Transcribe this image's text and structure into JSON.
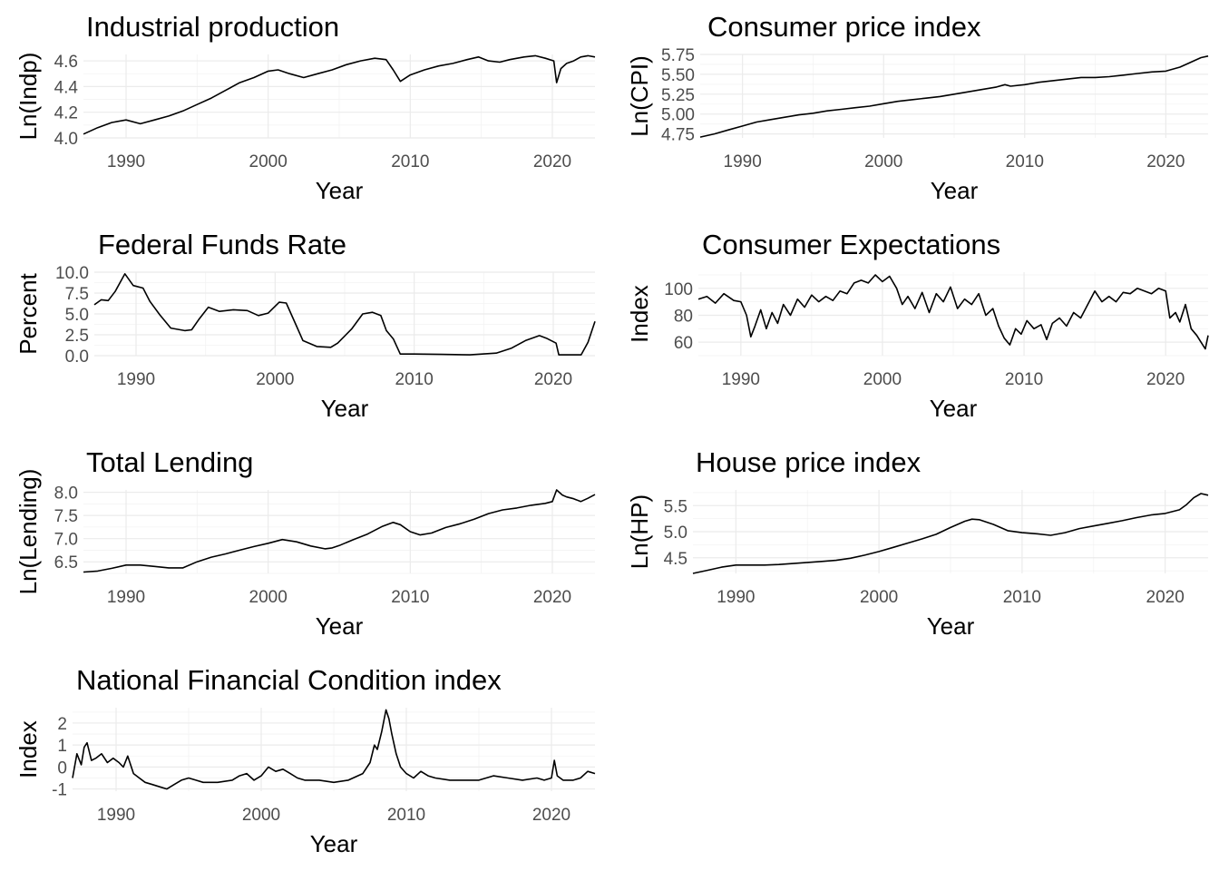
{
  "chart_data": [
    {
      "type": "line",
      "title": "Industrial production",
      "xlabel": "Year",
      "ylabel": "Ln(Indp)",
      "xlim": [
        1987,
        2023
      ],
      "ylim": [
        4.0,
        4.65
      ],
      "xticks": [
        1990,
        2000,
        2010,
        2020
      ],
      "xtick_labels": [
        "1990",
        "2000",
        "2010",
        "2020"
      ],
      "yticks": [
        4.0,
        4.2,
        4.4,
        4.6
      ],
      "ytick_labels": [
        "4.0",
        "4.2",
        "4.4",
        "4.6"
      ],
      "grid": true,
      "x": [
        1987.0,
        1988.0,
        1989.0,
        1990.0,
        1991.0,
        1992.0,
        1993.0,
        1994.0,
        1995.0,
        1996.0,
        1997.0,
        1998.0,
        1999.0,
        2000.0,
        2000.7,
        2001.5,
        2002.5,
        2003.5,
        2004.5,
        2005.5,
        2006.5,
        2007.5,
        2008.3,
        2008.8,
        2009.3,
        2010.0,
        2011.0,
        2012.0,
        2013.0,
        2014.0,
        2014.8,
        2015.5,
        2016.3,
        2017.0,
        2018.0,
        2018.8,
        2019.5,
        2020.1,
        2020.3,
        2020.6,
        2021.0,
        2021.5,
        2022.0,
        2022.5,
        2023.0
      ],
      "y": [
        4.03,
        4.08,
        4.12,
        4.14,
        4.11,
        4.14,
        4.17,
        4.21,
        4.26,
        4.31,
        4.37,
        4.43,
        4.47,
        4.52,
        4.53,
        4.5,
        4.47,
        4.5,
        4.53,
        4.57,
        4.6,
        4.62,
        4.61,
        4.53,
        4.44,
        4.49,
        4.53,
        4.56,
        4.58,
        4.61,
        4.63,
        4.6,
        4.59,
        4.61,
        4.63,
        4.64,
        4.62,
        4.6,
        4.43,
        4.54,
        4.58,
        4.6,
        4.63,
        4.64,
        4.63
      ]
    },
    {
      "type": "line",
      "title": "Consumer price index",
      "xlabel": "Year",
      "ylabel": "Ln(CPI)",
      "xlim": [
        1987,
        2023
      ],
      "ylim": [
        4.7,
        5.75
      ],
      "xticks": [
        1990,
        2000,
        2010,
        2020
      ],
      "xtick_labels": [
        "1990",
        "2000",
        "2010",
        "2020"
      ],
      "yticks": [
        4.75,
        5.0,
        5.25,
        5.5,
        5.75
      ],
      "ytick_labels": [
        "4.75",
        "5.00",
        "5.25",
        "5.50",
        "5.75"
      ],
      "grid": true,
      "x": [
        1987.0,
        1988.0,
        1989.0,
        1990.0,
        1991.0,
        1992.0,
        1993.0,
        1994.0,
        1995.0,
        1996.0,
        1997.0,
        1998.0,
        1999.0,
        2000.0,
        2001.0,
        2002.0,
        2003.0,
        2004.0,
        2005.0,
        2006.0,
        2007.0,
        2008.0,
        2008.6,
        2009.0,
        2010.0,
        2011.0,
        2012.0,
        2013.0,
        2014.0,
        2015.0,
        2016.0,
        2017.0,
        2018.0,
        2019.0,
        2020.0,
        2021.0,
        2021.5,
        2022.0,
        2022.5,
        2023.0
      ],
      "y": [
        4.71,
        4.75,
        4.8,
        4.85,
        4.9,
        4.93,
        4.96,
        4.99,
        5.01,
        5.04,
        5.06,
        5.08,
        5.1,
        5.13,
        5.16,
        5.18,
        5.2,
        5.22,
        5.25,
        5.28,
        5.31,
        5.34,
        5.37,
        5.35,
        5.37,
        5.4,
        5.42,
        5.44,
        5.46,
        5.46,
        5.47,
        5.49,
        5.51,
        5.53,
        5.54,
        5.59,
        5.63,
        5.67,
        5.71,
        5.73
      ]
    },
    {
      "type": "line",
      "title": "Federal Funds Rate",
      "xlabel": "Year",
      "ylabel": "Percent",
      "xlim": [
        1987,
        2023
      ],
      "ylim": [
        0,
        10
      ],
      "xticks": [
        1990,
        2000,
        2010,
        2020
      ],
      "xtick_labels": [
        "1990",
        "2000",
        "2010",
        "2020"
      ],
      "yticks": [
        0,
        2.5,
        5,
        7.5,
        10
      ],
      "ytick_labels": [
        "0.0",
        "2.5",
        "5.0",
        "7.5",
        "10.0"
      ],
      "grid": true,
      "x": [
        1987.0,
        1987.5,
        1988.0,
        1988.5,
        1989.2,
        1989.8,
        1990.5,
        1991.0,
        1991.7,
        1992.5,
        1993.5,
        1994.0,
        1994.5,
        1995.2,
        1996.0,
        1997.0,
        1998.0,
        1998.8,
        1999.5,
        2000.3,
        2000.8,
        2001.5,
        2002.0,
        2003.0,
        2004.0,
        2004.5,
        2005.5,
        2006.3,
        2007.0,
        2007.6,
        2008.0,
        2008.5,
        2009.0,
        2010.0,
        2012.0,
        2014.0,
        2015.9,
        2017.0,
        2018.0,
        2019.0,
        2019.5,
        2020.2,
        2020.4,
        2022.0,
        2022.5,
        2023.0
      ],
      "y": [
        6.1,
        6.7,
        6.6,
        7.7,
        9.8,
        8.4,
        8.1,
        6.5,
        4.9,
        3.3,
        3.0,
        3.1,
        4.3,
        5.8,
        5.3,
        5.5,
        5.4,
        4.8,
        5.1,
        6.4,
        6.3,
        3.7,
        1.8,
        1.1,
        1.0,
        1.5,
        3.2,
        5.0,
        5.2,
        4.8,
        3.0,
        2.0,
        0.2,
        0.2,
        0.15,
        0.1,
        0.3,
        0.9,
        1.8,
        2.4,
        2.1,
        1.5,
        0.1,
        0.1,
        1.6,
        4.1
      ]
    },
    {
      "type": "line",
      "title": "Consumer Expectations",
      "xlabel": "Year",
      "ylabel": "Index",
      "xlim": [
        1987,
        2023
      ],
      "ylim": [
        50,
        112
      ],
      "xticks": [
        1990,
        2000,
        2010,
        2020
      ],
      "xtick_labels": [
        "1990",
        "2000",
        "2010",
        "2020"
      ],
      "yticks": [
        60,
        80,
        100
      ],
      "ytick_labels": [
        "60",
        "80",
        "100"
      ],
      "grid": true,
      "x": [
        1987.0,
        1987.6,
        1988.2,
        1988.8,
        1989.5,
        1990.0,
        1990.4,
        1990.7,
        1991.0,
        1991.4,
        1991.8,
        1992.2,
        1992.6,
        1993.0,
        1993.5,
        1994.0,
        1994.5,
        1995.0,
        1995.5,
        1996.0,
        1996.5,
        1997.0,
        1997.5,
        1998.0,
        1998.5,
        1999.0,
        1999.5,
        2000.0,
        2000.5,
        2001.0,
        2001.4,
        2001.8,
        2002.3,
        2002.8,
        2003.3,
        2003.8,
        2004.3,
        2004.8,
        2005.3,
        2005.8,
        2006.3,
        2006.8,
        2007.3,
        2007.8,
        2008.2,
        2008.6,
        2009.0,
        2009.4,
        2009.8,
        2010.2,
        2010.7,
        2011.2,
        2011.6,
        2012.0,
        2012.5,
        2013.0,
        2013.5,
        2014.0,
        2014.5,
        2015.0,
        2015.5,
        2016.0,
        2016.5,
        2017.0,
        2017.5,
        2018.0,
        2018.5,
        2019.0,
        2019.5,
        2020.0,
        2020.3,
        2020.7,
        2021.0,
        2021.4,
        2021.8,
        2022.2,
        2022.5,
        2022.8,
        2023.0
      ],
      "y": [
        92,
        94,
        89,
        96,
        91,
        90,
        80,
        64,
        72,
        84,
        70,
        82,
        74,
        88,
        80,
        92,
        86,
        95,
        90,
        94,
        91,
        98,
        96,
        104,
        106,
        104,
        110,
        105,
        109,
        100,
        88,
        94,
        85,
        97,
        82,
        96,
        90,
        101,
        85,
        92,
        88,
        96,
        80,
        85,
        72,
        63,
        58,
        70,
        66,
        76,
        70,
        73,
        62,
        74,
        78,
        72,
        82,
        78,
        88,
        98,
        90,
        94,
        90,
        97,
        96,
        100,
        98,
        96,
        100,
        98,
        78,
        82,
        75,
        88,
        70,
        65,
        60,
        55,
        65
      ]
    },
    {
      "type": "line",
      "title": "Total Lending",
      "xlabel": "Year",
      "ylabel": "Ln(Lending)",
      "xlim": [
        1987,
        2023
      ],
      "ylim": [
        6.25,
        8.05
      ],
      "xticks": [
        1990,
        2000,
        2010,
        2020
      ],
      "xtick_labels": [
        "1990",
        "2000",
        "2010",
        "2020"
      ],
      "yticks": [
        6.5,
        7.0,
        7.5,
        8.0
      ],
      "ytick_labels": [
        "6.5",
        "7.0",
        "7.5",
        "8.0"
      ],
      "grid": true,
      "x": [
        1987.0,
        1988.0,
        1989.0,
        1990.0,
        1991.0,
        1992.0,
        1993.0,
        1994.0,
        1995.0,
        1996.0,
        1997.0,
        1998.0,
        1999.0,
        2000.0,
        2001.0,
        2002.0,
        2003.0,
        2004.0,
        2004.5,
        2005.0,
        2006.0,
        2007.0,
        2008.0,
        2008.8,
        2009.3,
        2010.0,
        2010.7,
        2011.5,
        2012.5,
        2013.5,
        2014.5,
        2015.5,
        2016.5,
        2017.5,
        2018.5,
        2019.5,
        2020.0,
        2020.3,
        2020.7,
        2021.0,
        2021.5,
        2022.0,
        2022.5,
        2023.0
      ],
      "y": [
        6.28,
        6.3,
        6.36,
        6.43,
        6.43,
        6.4,
        6.37,
        6.37,
        6.5,
        6.6,
        6.67,
        6.75,
        6.83,
        6.9,
        6.98,
        6.93,
        6.84,
        6.78,
        6.8,
        6.85,
        6.98,
        7.1,
        7.26,
        7.35,
        7.3,
        7.15,
        7.08,
        7.12,
        7.24,
        7.32,
        7.42,
        7.54,
        7.62,
        7.66,
        7.72,
        7.76,
        7.8,
        8.05,
        7.94,
        7.9,
        7.86,
        7.8,
        7.87,
        7.95
      ]
    },
    {
      "type": "line",
      "title": "House price index",
      "xlabel": "Year",
      "ylabel": "Ln(HP)",
      "xlim": [
        1987,
        2023
      ],
      "ylim": [
        4.2,
        5.8
      ],
      "xticks": [
        1990,
        2000,
        2010,
        2020
      ],
      "xtick_labels": [
        "1990",
        "2000",
        "2010",
        "2020"
      ],
      "yticks": [
        4.5,
        5.0,
        5.5
      ],
      "ytick_labels": [
        "4.5",
        "5.0",
        "5.5"
      ],
      "grid": true,
      "x": [
        1987.0,
        1988.0,
        1989.0,
        1990.0,
        1991.0,
        1992.0,
        1993.0,
        1994.0,
        1995.0,
        1996.0,
        1997.0,
        1998.0,
        1999.0,
        2000.0,
        2001.0,
        2002.0,
        2003.0,
        2004.0,
        2005.0,
        2006.0,
        2006.5,
        2007.0,
        2008.0,
        2009.0,
        2010.0,
        2011.0,
        2012.0,
        2013.0,
        2014.0,
        2015.0,
        2016.0,
        2017.0,
        2018.0,
        2019.0,
        2020.0,
        2021.0,
        2021.5,
        2022.0,
        2022.5,
        2023.0
      ],
      "y": [
        4.2,
        4.26,
        4.32,
        4.36,
        4.36,
        4.36,
        4.37,
        4.39,
        4.41,
        4.43,
        4.45,
        4.49,
        4.55,
        4.62,
        4.7,
        4.78,
        4.86,
        4.95,
        5.08,
        5.2,
        5.24,
        5.23,
        5.14,
        5.02,
        4.98,
        4.96,
        4.93,
        4.98,
        5.06,
        5.11,
        5.16,
        5.21,
        5.27,
        5.32,
        5.35,
        5.42,
        5.52,
        5.65,
        5.73,
        5.7
      ]
    },
    {
      "type": "line",
      "title": "National Financial Condition index",
      "xlabel": "Year",
      "ylabel": "Index",
      "xlim": [
        1987,
        2023
      ],
      "ylim": [
        -1.1,
        2.7
      ],
      "xticks": [
        1990,
        2000,
        2010,
        2020
      ],
      "xtick_labels": [
        "1990",
        "2000",
        "2010",
        "2020"
      ],
      "yticks": [
        -1,
        0,
        1,
        2
      ],
      "ytick_labels": [
        "-1",
        "0",
        "1",
        "2"
      ],
      "grid": true,
      "x": [
        1987.0,
        1987.3,
        1987.6,
        1987.8,
        1988.0,
        1988.3,
        1988.6,
        1989.0,
        1989.4,
        1989.8,
        1990.2,
        1990.5,
        1990.8,
        1991.2,
        1991.6,
        1992.0,
        1992.5,
        1993.0,
        1993.5,
        1994.0,
        1994.5,
        1995.0,
        1995.5,
        1996.0,
        1997.0,
        1998.0,
        1998.5,
        1999.0,
        1999.5,
        2000.0,
        2000.5,
        2001.0,
        2001.5,
        2002.0,
        2002.5,
        2003.0,
        2004.0,
        2005.0,
        2006.0,
        2007.0,
        2007.5,
        2007.8,
        2008.0,
        2008.3,
        2008.6,
        2008.8,
        2009.0,
        2009.3,
        2009.6,
        2010.0,
        2010.5,
        2011.0,
        2011.5,
        2012.0,
        2013.0,
        2014.0,
        2015.0,
        2016.0,
        2017.0,
        2018.0,
        2019.0,
        2019.5,
        2020.0,
        2020.2,
        2020.4,
        2020.8,
        2021.5,
        2022.0,
        2022.5,
        2023.0
      ],
      "y": [
        -0.5,
        0.6,
        0.1,
        0.9,
        1.1,
        0.3,
        0.4,
        0.6,
        0.2,
        0.4,
        0.2,
        0.0,
        0.5,
        -0.3,
        -0.5,
        -0.7,
        -0.8,
        -0.9,
        -1.0,
        -0.8,
        -0.6,
        -0.5,
        -0.6,
        -0.7,
        -0.7,
        -0.6,
        -0.4,
        -0.3,
        -0.6,
        -0.4,
        0.0,
        -0.2,
        -0.1,
        -0.3,
        -0.5,
        -0.6,
        -0.6,
        -0.7,
        -0.6,
        -0.3,
        0.2,
        1.0,
        0.8,
        1.6,
        2.6,
        2.2,
        1.5,
        0.6,
        0.0,
        -0.3,
        -0.5,
        -0.2,
        -0.4,
        -0.5,
        -0.6,
        -0.6,
        -0.6,
        -0.4,
        -0.5,
        -0.6,
        -0.5,
        -0.6,
        -0.5,
        0.3,
        -0.4,
        -0.6,
        -0.6,
        -0.5,
        -0.2,
        -0.3
      ]
    }
  ]
}
